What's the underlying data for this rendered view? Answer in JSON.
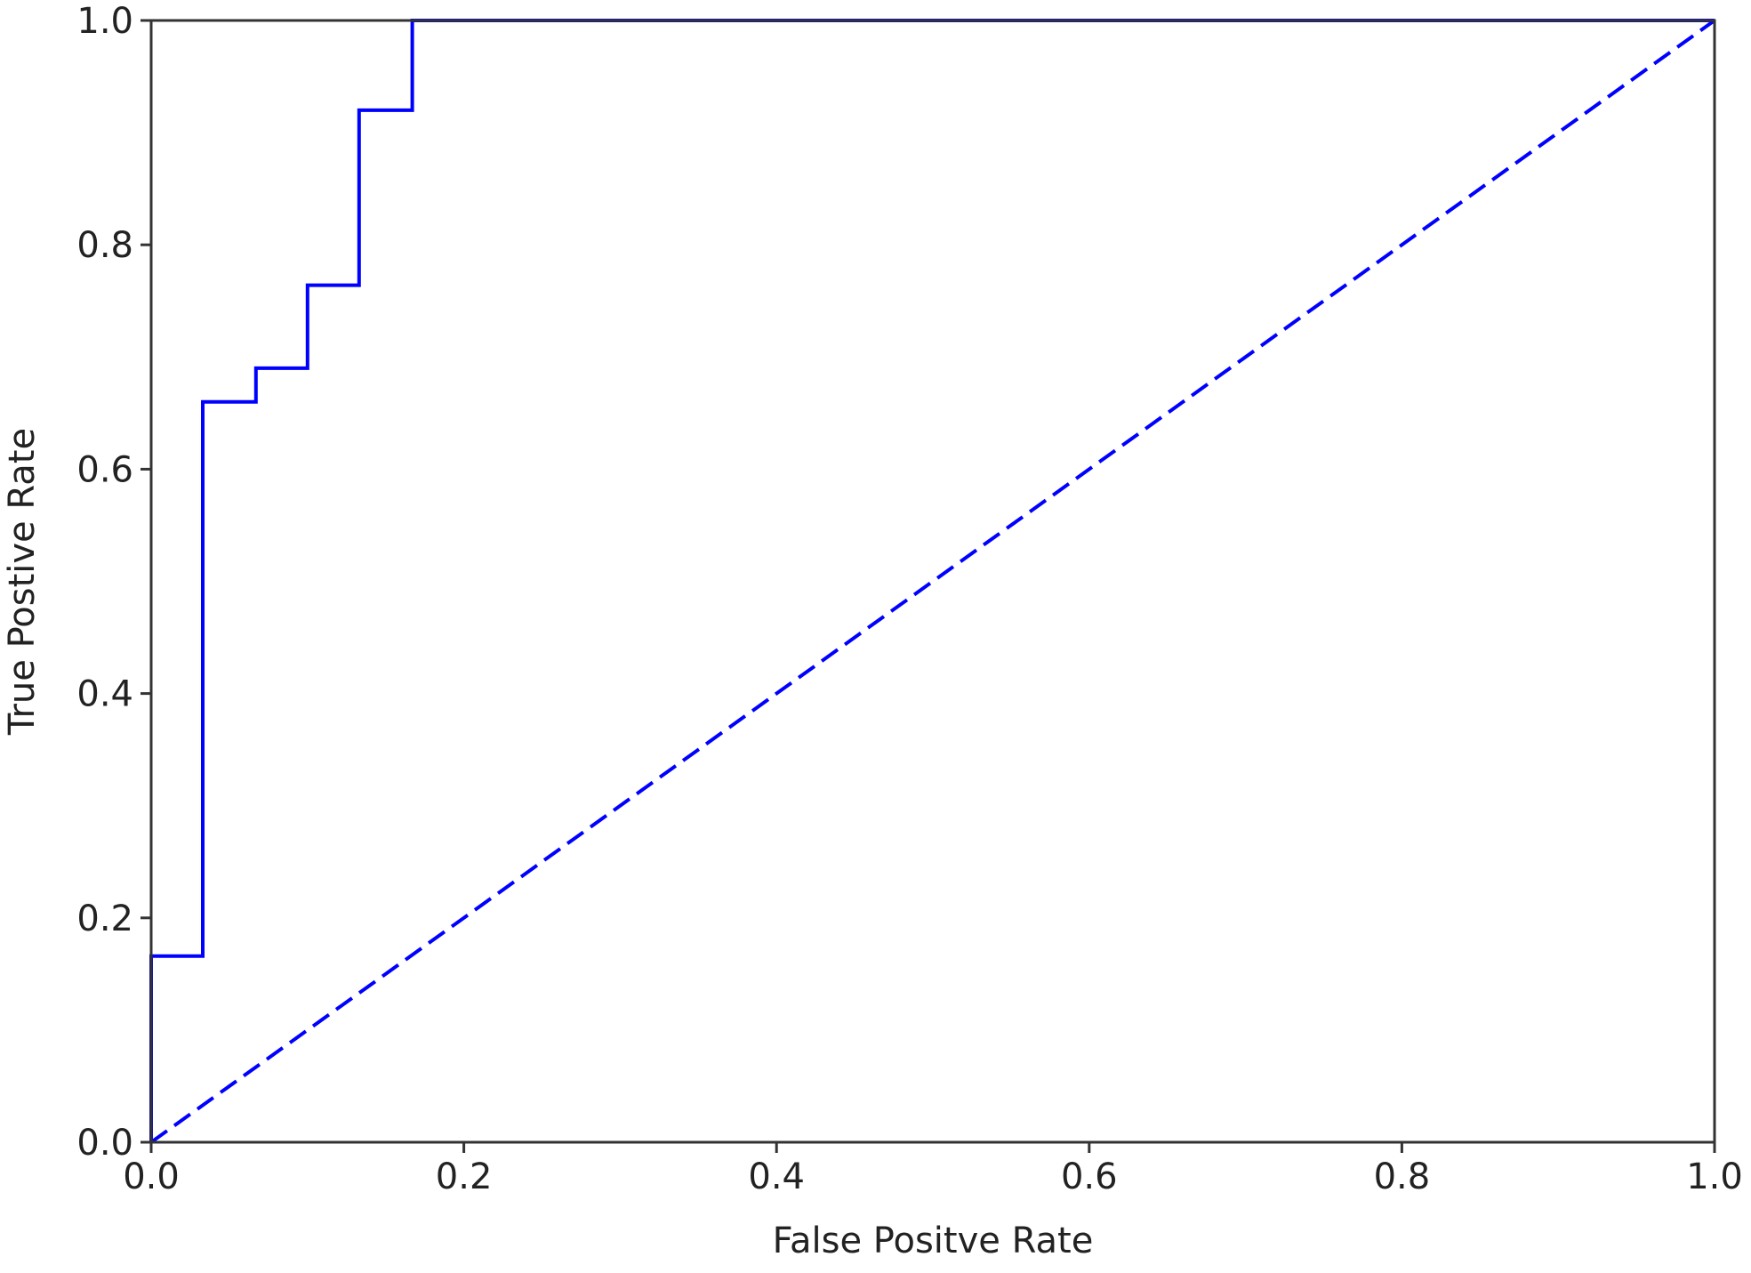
{
  "chart_data": {
    "type": "line",
    "title": "",
    "xlabel": "False Positve Rate",
    "ylabel": "True Postive Rate",
    "xlim": [
      0.0,
      1.0
    ],
    "ylim": [
      0.0,
      1.0
    ],
    "xticks": [
      "0.0",
      "0.2",
      "0.4",
      "0.6",
      "0.8",
      "1.0"
    ],
    "yticks": [
      "0.0",
      "0.2",
      "0.4",
      "0.6",
      "0.8",
      "1.0"
    ],
    "grid": false,
    "series": [
      {
        "style": "solid",
        "color": "#0000ff",
        "x": [
          0.0,
          0.0,
          0.033,
          0.033,
          0.067,
          0.067,
          0.1,
          0.1,
          0.133,
          0.133,
          0.167,
          0.167,
          1.0
        ],
        "y": [
          0.0,
          0.166,
          0.166,
          0.66,
          0.66,
          0.69,
          0.69,
          0.764,
          0.764,
          0.92,
          0.92,
          1.0,
          1.0
        ]
      },
      {
        "style": "dashed",
        "color": "#0000ff",
        "x": [
          0.0,
          1.0
        ],
        "y": [
          0.0,
          1.0
        ]
      }
    ]
  }
}
